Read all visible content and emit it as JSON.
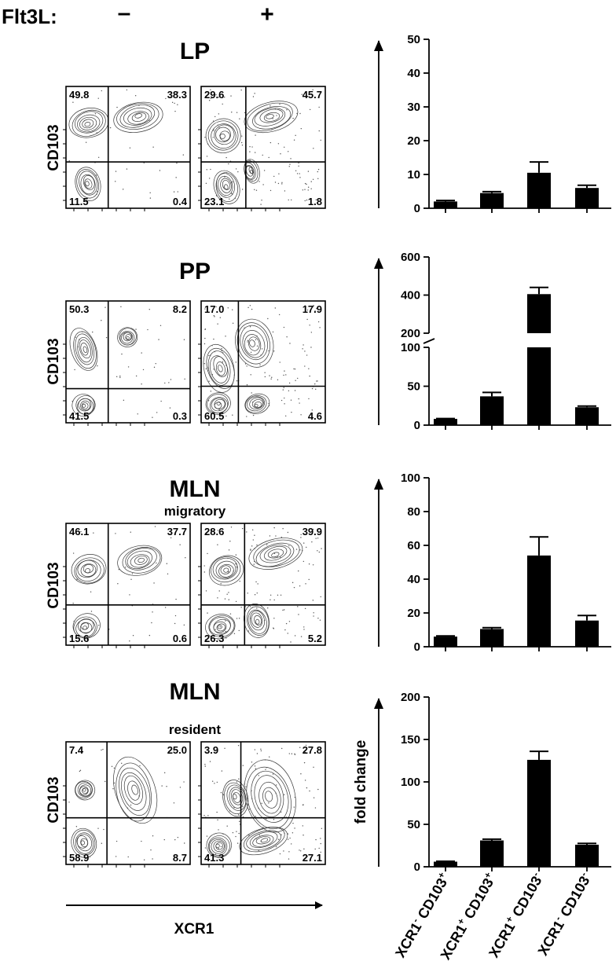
{
  "header": {
    "label": "Flt3L:",
    "minus": "–",
    "plus": "+"
  },
  "colors": {
    "ink": "#000000",
    "contour": "#3a3a3a",
    "dots": "#555555"
  },
  "flow": {
    "y_axis_label": "CD103",
    "x_axis_label": "XCR1",
    "panels": [
      {
        "title": "LP",
        "subtitle": "",
        "minus": {
          "ul": "49.8",
          "ur": "38.3",
          "ll": "11.5",
          "lr": "0.4"
        },
        "plus": {
          "ul": "29.6",
          "ur": "45.7",
          "ll": "23.1",
          "lr": "1.8"
        }
      },
      {
        "title": "PP",
        "subtitle": "",
        "minus": {
          "ul": "50.3",
          "ur": "8.2",
          "ll": "41.5",
          "lr": "0.3"
        },
        "plus": {
          "ul": "17.0",
          "ur": "17.9",
          "ll": "60.5",
          "lr": "4.6"
        }
      },
      {
        "title": "MLN",
        "subtitle": "migratory",
        "minus": {
          "ul": "46.1",
          "ur": "37.7",
          "ll": "15.6",
          "lr": "0.6"
        },
        "plus": {
          "ul": "28.6",
          "ur": "39.9",
          "ll": "26.3",
          "lr": "5.2"
        }
      },
      {
        "title": "MLN",
        "subtitle": "resident",
        "minus": {
          "ul": "7.4",
          "ur": "25.0",
          "ll": "58.9",
          "lr": "8.7"
        },
        "plus": {
          "ul": "3.9",
          "ur": "27.8",
          "ll": "41.3",
          "lr": "27.1"
        }
      }
    ]
  },
  "chart_data": [
    {
      "type": "bar",
      "panel": "LP",
      "categories": [
        "XCR1- CD103+",
        "XCR1+ CD103+",
        "XCR1+ CD103-",
        "XCR1- CD103-"
      ],
      "values": [
        2,
        4.5,
        10.5,
        6
      ],
      "errors": [
        0.3,
        0.4,
        3.2,
        0.8
      ],
      "ylim": [
        0,
        50
      ],
      "yticks": [
        0,
        10,
        20,
        30,
        40,
        50
      ],
      "ylabel": ""
    },
    {
      "type": "bar",
      "panel": "PP",
      "categories": [
        "XCR1- CD103+",
        "XCR1+ CD103+",
        "XCR1+ CD103-",
        "XCR1- CD103-"
      ],
      "values": [
        8,
        37,
        405,
        23
      ],
      "errors": [
        0.5,
        5,
        35,
        1.5
      ],
      "ylim": [
        0,
        600
      ],
      "axis_break": [
        100,
        200
      ],
      "yticks_lower": [
        0,
        50,
        100
      ],
      "yticks_upper": [
        200,
        400,
        600
      ],
      "ylabel": ""
    },
    {
      "type": "bar",
      "panel": "MLN migratory",
      "categories": [
        "XCR1- CD103+",
        "XCR1+ CD103+",
        "XCR1+ CD103-",
        "XCR1- CD103-"
      ],
      "values": [
        6,
        10.5,
        54,
        15.5
      ],
      "errors": [
        0.4,
        0.8,
        11,
        3
      ],
      "ylim": [
        0,
        100
      ],
      "yticks": [
        0,
        20,
        40,
        60,
        80,
        100
      ],
      "ylabel": ""
    },
    {
      "type": "bar",
      "panel": "MLN resident",
      "categories": [
        "XCR1- CD103+",
        "XCR1+ CD103+",
        "XCR1+ CD103-",
        "XCR1- CD103-"
      ],
      "values": [
        6,
        31,
        126,
        26
      ],
      "errors": [
        0.5,
        1.5,
        10,
        1.5
      ],
      "ylim": [
        0,
        200
      ],
      "yticks": [
        0,
        50,
        100,
        150,
        200
      ],
      "ylabel": "fold change"
    }
  ],
  "category_labels": [
    {
      "a": "XCR1",
      "a_sup": "-",
      "b": "CD103",
      "b_sup": "+"
    },
    {
      "a": "XCR1",
      "a_sup": "+",
      "b": "CD103",
      "b_sup": "+"
    },
    {
      "a": "XCR1",
      "a_sup": "+",
      "b": "CD103",
      "b_sup": "-"
    },
    {
      "a": "XCR1",
      "a_sup": "-",
      "b": "CD103",
      "b_sup": "-"
    }
  ]
}
